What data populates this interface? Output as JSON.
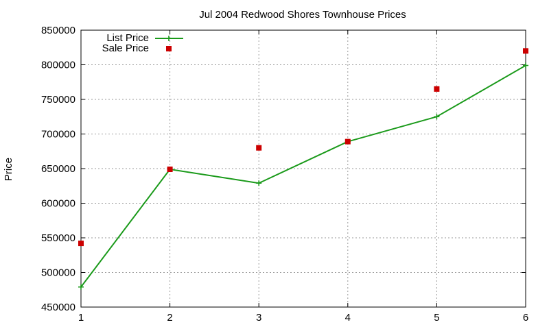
{
  "chart_data": {
    "type": "line",
    "title": "Jul 2004 Redwood Shores Townhouse Prices",
    "xlabel": "",
    "ylabel": "Price",
    "x": [
      1,
      2,
      3,
      4,
      5,
      6
    ],
    "xlim": [
      1,
      6
    ],
    "ylim": [
      450000,
      850000
    ],
    "xticks": [
      "1",
      "2",
      "3",
      "4",
      "5",
      "6"
    ],
    "yticks": [
      "450000",
      "500000",
      "550000",
      "600000",
      "650000",
      "700000",
      "750000",
      "800000",
      "850000"
    ],
    "grid": true,
    "legend_position": "top-left",
    "series": [
      {
        "name": "List Price",
        "style": "line-with-plus-markers",
        "color": "#1a9a1a",
        "values": [
          479000,
          649000,
          629000,
          689000,
          725000,
          799000
        ]
      },
      {
        "name": "Sale Price",
        "style": "square-markers",
        "color": "#cc0000",
        "values": [
          542000,
          649000,
          680000,
          689000,
          765000,
          820000
        ]
      }
    ]
  }
}
